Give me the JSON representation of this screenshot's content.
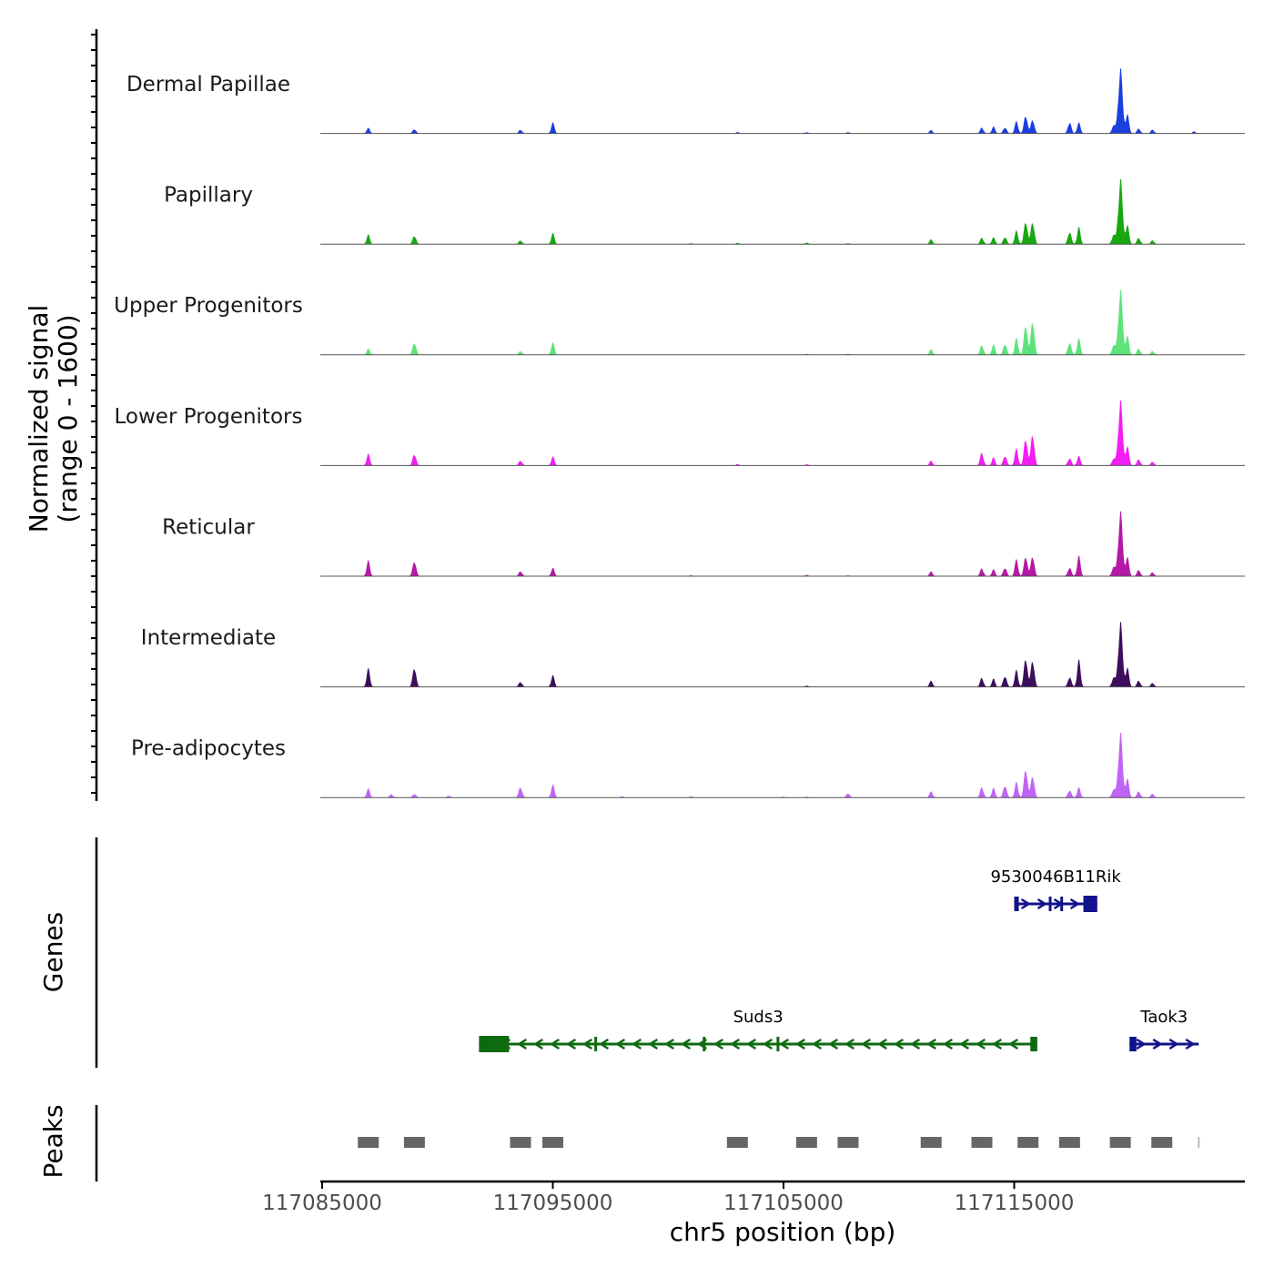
{
  "chart_data": {
    "type": "area",
    "title": "",
    "xlabel": "chr5 position (bp)",
    "ylabel_line1": "Normalized signal",
    "ylabel_line2": "(range 0 - 1600)",
    "ylim": [
      0,
      1600
    ],
    "xlim": [
      117085000,
      117125000
    ],
    "x_ticks": [
      117085000,
      117095000,
      117105000,
      117115000
    ],
    "x_tick_labels": [
      "117085000",
      "117095000",
      "117105000",
      "117115000"
    ],
    "genes_label": "Genes",
    "peaks_label": "Peaks",
    "peak_positions": [
      117087000,
      117089000,
      117093600,
      117095000,
      117103000,
      117106000,
      117107800,
      117111400,
      117113600,
      117115600,
      117117400,
      117119600,
      117121400,
      117123000
    ],
    "series": [
      {
        "name": "Dermal Papillae",
        "color": "#1c3fe0",
        "peaks": [
          [
            117087000,
            80
          ],
          [
            117089000,
            70
          ],
          [
            117093600,
            60
          ],
          [
            117095000,
            160
          ],
          [
            117103000,
            20
          ],
          [
            117106000,
            20
          ],
          [
            117107800,
            20
          ],
          [
            117111400,
            50
          ],
          [
            117113600,
            90
          ],
          [
            117114100,
            100
          ],
          [
            117114600,
            100
          ],
          [
            117115100,
            180
          ],
          [
            117115500,
            300
          ],
          [
            117115800,
            230
          ],
          [
            117117400,
            180
          ],
          [
            117117800,
            160
          ],
          [
            117119300,
            120
          ],
          [
            117119600,
            1000
          ],
          [
            117119900,
            300
          ],
          [
            117120400,
            80
          ],
          [
            117121000,
            60
          ],
          [
            117122800,
            30
          ]
        ]
      },
      {
        "name": "Papillary",
        "color": "#17a80f",
        "peaks": [
          [
            117087000,
            140
          ],
          [
            117089000,
            140
          ],
          [
            117093600,
            60
          ],
          [
            117095000,
            160
          ],
          [
            117101000,
            15
          ],
          [
            117103000,
            20
          ],
          [
            117106000,
            25
          ],
          [
            117107800,
            15
          ],
          [
            117111400,
            70
          ],
          [
            117113600,
            100
          ],
          [
            117114100,
            100
          ],
          [
            117114600,
            120
          ],
          [
            117115100,
            200
          ],
          [
            117115500,
            380
          ],
          [
            117115800,
            370
          ],
          [
            117117400,
            200
          ],
          [
            117117800,
            250
          ],
          [
            117119300,
            140
          ],
          [
            117119600,
            1000
          ],
          [
            117119900,
            300
          ],
          [
            117120400,
            100
          ],
          [
            117121000,
            60
          ]
        ]
      },
      {
        "name": "Upper Progenitors",
        "color": "#5ee27a",
        "peaks": [
          [
            117087000,
            90
          ],
          [
            117089000,
            200
          ],
          [
            117093600,
            60
          ],
          [
            117095000,
            180
          ],
          [
            117106000,
            20
          ],
          [
            117107800,
            20
          ],
          [
            117111400,
            80
          ],
          [
            117113600,
            150
          ],
          [
            117114100,
            150
          ],
          [
            117114600,
            180
          ],
          [
            117115100,
            250
          ],
          [
            117115500,
            500
          ],
          [
            117115800,
            560
          ],
          [
            117117400,
            200
          ],
          [
            117117800,
            240
          ],
          [
            117119300,
            140
          ],
          [
            117119600,
            1000
          ],
          [
            117119900,
            300
          ],
          [
            117120400,
            100
          ],
          [
            117121000,
            60
          ]
        ]
      },
      {
        "name": "Lower Progenitors",
        "color": "#f31ef4",
        "peaks": [
          [
            117087000,
            170
          ],
          [
            117089000,
            190
          ],
          [
            117093600,
            80
          ],
          [
            117095000,
            130
          ],
          [
            117103000,
            20
          ],
          [
            117106000,
            20
          ],
          [
            117111400,
            70
          ],
          [
            117113600,
            200
          ],
          [
            117114100,
            120
          ],
          [
            117114600,
            160
          ],
          [
            117115100,
            250
          ],
          [
            117115500,
            450
          ],
          [
            117115800,
            520
          ],
          [
            117117400,
            120
          ],
          [
            117117800,
            140
          ],
          [
            117119300,
            100
          ],
          [
            117119600,
            1000
          ],
          [
            117119900,
            300
          ],
          [
            117120400,
            100
          ],
          [
            117121000,
            60
          ]
        ]
      },
      {
        "name": "Reticular",
        "color": "#b518a6",
        "peaks": [
          [
            117087000,
            230
          ],
          [
            117089000,
            250
          ],
          [
            117093600,
            80
          ],
          [
            117095000,
            120
          ],
          [
            117101000,
            15
          ],
          [
            117106000,
            20
          ],
          [
            117107800,
            15
          ],
          [
            117111400,
            70
          ],
          [
            117113600,
            120
          ],
          [
            117114100,
            100
          ],
          [
            117114600,
            140
          ],
          [
            117115100,
            250
          ],
          [
            117115500,
            330
          ],
          [
            117115800,
            330
          ],
          [
            117117400,
            140
          ],
          [
            117117800,
            300
          ],
          [
            117119300,
            140
          ],
          [
            117119600,
            1000
          ],
          [
            117119900,
            300
          ],
          [
            117120400,
            100
          ],
          [
            117121000,
            60
          ]
        ]
      },
      {
        "name": "Intermediate",
        "color": "#3d0e5c",
        "peaks": [
          [
            117087000,
            270
          ],
          [
            117089000,
            320
          ],
          [
            117093600,
            80
          ],
          [
            117095000,
            170
          ],
          [
            117106000,
            20
          ],
          [
            117111400,
            90
          ],
          [
            117113600,
            140
          ],
          [
            117114100,
            120
          ],
          [
            117114600,
            180
          ],
          [
            117115100,
            250
          ],
          [
            117115500,
            480
          ],
          [
            117115800,
            440
          ],
          [
            117117400,
            160
          ],
          [
            117117800,
            400
          ],
          [
            117119300,
            140
          ],
          [
            117119600,
            1000
          ],
          [
            117119900,
            300
          ],
          [
            117120400,
            100
          ],
          [
            117121000,
            60
          ]
        ]
      },
      {
        "name": "Pre-adipocytes",
        "color": "#c064f6",
        "peaks": [
          [
            117087000,
            130
          ],
          [
            117088000,
            50
          ],
          [
            117089000,
            60
          ],
          [
            117090500,
            30
          ],
          [
            117093600,
            170
          ],
          [
            117095000,
            190
          ],
          [
            117098000,
            20
          ],
          [
            117101000,
            20
          ],
          [
            117105000,
            15
          ],
          [
            117106000,
            15
          ],
          [
            117107800,
            70
          ],
          [
            117111400,
            90
          ],
          [
            117113600,
            160
          ],
          [
            117114100,
            140
          ],
          [
            117114600,
            200
          ],
          [
            117115100,
            230
          ],
          [
            117115500,
            480
          ],
          [
            117115800,
            360
          ],
          [
            117117400,
            120
          ],
          [
            117117800,
            150
          ],
          [
            117119300,
            120
          ],
          [
            117119600,
            1000
          ],
          [
            117119900,
            300
          ],
          [
            117120400,
            100
          ],
          [
            117121000,
            60
          ]
        ]
      }
    ],
    "genes": [
      {
        "name": "9530046B11Rik",
        "start": 117115000,
        "end": 117118600,
        "strand": "+",
        "color": "#12128a",
        "row": 1,
        "exons": [
          [
            117115000,
            117115200
          ],
          [
            117116500,
            117116600
          ],
          [
            117117000,
            117117100
          ],
          [
            117118000,
            117118600
          ]
        ]
      },
      {
        "name": "Suds3",
        "start": 117091800,
        "end": 117116000,
        "strand": "-",
        "color": "#0e6a0e",
        "row": 2,
        "exons": [
          [
            117091800,
            117093100
          ],
          [
            117096800,
            117096900
          ],
          [
            117101500,
            117101600
          ],
          [
            117104700,
            117104800
          ],
          [
            117115700,
            117116000
          ]
        ]
      },
      {
        "name": "Taok3",
        "start": 117120000,
        "end": 117123000,
        "strand": "+",
        "color": "#12128a",
        "row": 2,
        "exons": [
          [
            117120000,
            117120300
          ]
        ]
      }
    ]
  }
}
